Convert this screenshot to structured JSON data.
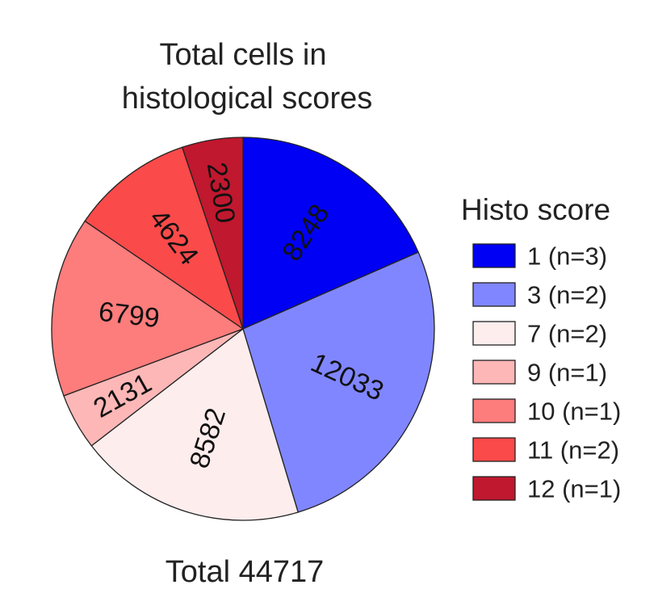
{
  "chart_data": {
    "type": "pie",
    "title_lines": [
      "Total cells in",
      "histological scores"
    ],
    "footer": "Total 44717",
    "legend_title": "Histo score",
    "legend_placement": "right",
    "slices": [
      {
        "label": "1 (n=3)",
        "value": 8248,
        "value_label": "8248",
        "color": "#0000f5"
      },
      {
        "label": "3 (n=2)",
        "value": 12033,
        "value_label": "12033",
        "color": "#8086ff"
      },
      {
        "label": "7 (n=2)",
        "value": 8582,
        "value_label": "8582",
        "color": "#fdeded"
      },
      {
        "label": "9 (n=1)",
        "value": 2131,
        "value_label": "2131",
        "color": "#fdb7b7"
      },
      {
        "label": "10 (n=1)",
        "value": 6799,
        "value_label": "6799",
        "color": "#fd7c7c"
      },
      {
        "label": "11 (n=2)",
        "value": 4624,
        "value_label": "4624",
        "color": "#fa4a4a"
      },
      {
        "label": "12 (n=1)",
        "value": 2300,
        "value_label": "2300",
        "color": "#c0182e"
      }
    ]
  }
}
